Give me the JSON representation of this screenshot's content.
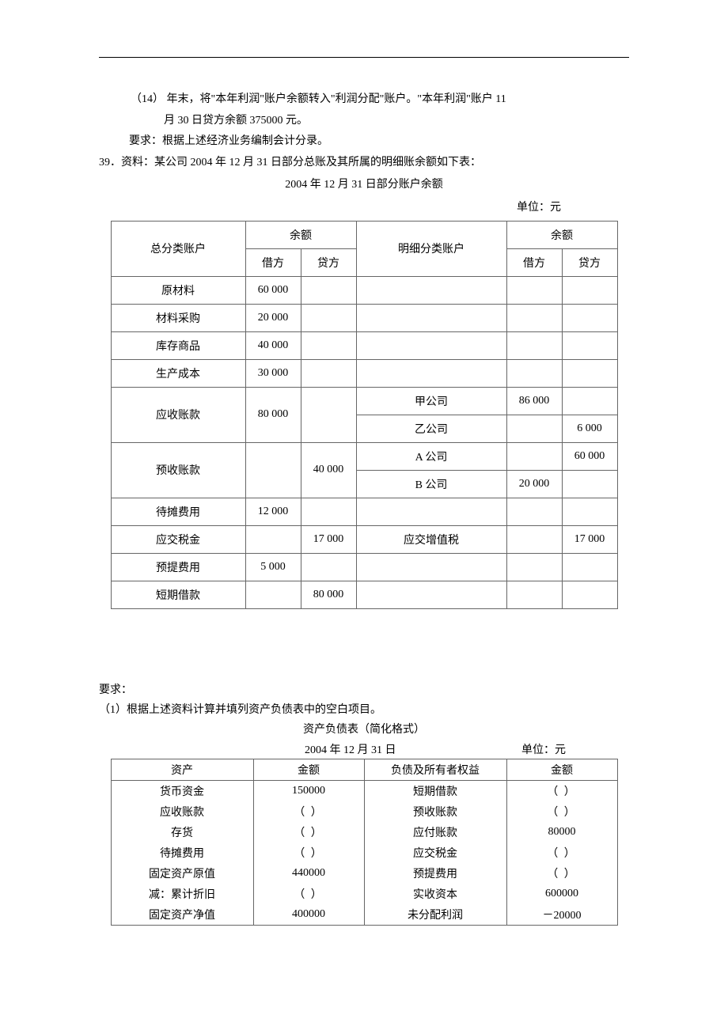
{
  "top": {
    "item14_line1": "（14）  年末，将\"本年利润\"账户余额转入\"利润分配\"账户。\"本年利润\"账户 11",
    "item14_line2": "月 30 日贷方余额 375000 元。",
    "req": "要求：根据上述经济业务编制会计分录。",
    "q39": "39．资料：某公司 2004 年 12 月 31 日部分总账及其所属的明细账余额如下表：",
    "table1_title": "2004 年 12 月 31 日部分账户余额",
    "unit": "单位：元"
  },
  "table1": {
    "headers": {
      "general": "总分类账户",
      "balance": "余额",
      "debit": "借方",
      "credit": "贷方",
      "detail": "明细分类账户"
    },
    "rows": [
      {
        "gen": "原材料",
        "d": "60 000",
        "c": "",
        "det": "",
        "dd": "",
        "dc": ""
      },
      {
        "gen": "材料采购",
        "d": "20 000",
        "c": "",
        "det": "",
        "dd": "",
        "dc": ""
      },
      {
        "gen": "库存商品",
        "d": "40 000",
        "c": "",
        "det": "",
        "dd": "",
        "dc": ""
      },
      {
        "gen": "生产成本",
        "d": "30 000",
        "c": "",
        "det": "",
        "dd": "",
        "dc": ""
      },
      {
        "gen": "应收账款",
        "d": "80 000",
        "c": "",
        "span": 2,
        "details": [
          {
            "det": "甲公司",
            "dd": "86 000",
            "dc": ""
          },
          {
            "det": "乙公司",
            "dd": "",
            "dc": "6 000"
          }
        ]
      },
      {
        "gen": "预收账款",
        "d": "",
        "c": "40 000",
        "span": 2,
        "details": [
          {
            "det": "A 公司",
            "dd": "",
            "dc": "60 000"
          },
          {
            "det": "B 公司",
            "dd": "20 000",
            "dc": ""
          }
        ]
      },
      {
        "gen": "待摊费用",
        "d": "12 000",
        "c": "",
        "det": "",
        "dd": "",
        "dc": ""
      },
      {
        "gen": "应交税金",
        "d": "",
        "c": "17 000",
        "det": "应交增值税",
        "dd": "",
        "dc": "17 000"
      },
      {
        "gen": "预提费用",
        "d": "5 000",
        "c": "",
        "det": "",
        "dd": "",
        "dc": ""
      },
      {
        "gen": "短期借款",
        "d": "",
        "c": "80 000",
        "det": "",
        "dd": "",
        "dc": ""
      }
    ]
  },
  "mid": {
    "req_label": "要求：",
    "req_1": "（1）根据上述资料计算并填列资产负债表中的空白项目。",
    "table2_title": "资产负债表（简化格式）",
    "date": "2004 年 12 月 31 日",
    "unit": "单位：元"
  },
  "table2": {
    "headers": {
      "asset": "资产",
      "amt1": "金额",
      "liab": "负债及所有者权益",
      "amt2": "金额"
    },
    "blank": "（          ）",
    "rows": [
      {
        "a": "货币资金",
        "v1": "150000",
        "l": "短期借款",
        "v2": "BLANK"
      },
      {
        "a": "应收账款",
        "v1": "BLANK",
        "l": "预收账款",
        "v2": "BLANK"
      },
      {
        "a": "存货",
        "v1": "BLANK",
        "l": "应付账款",
        "v2": "80000"
      },
      {
        "a": "待摊费用",
        "v1": "BLANK",
        "l": "应交税金",
        "v2": "BLANK"
      },
      {
        "a": "固定资产原值",
        "v1": "440000",
        "l": "预提费用",
        "v2": "BLANK"
      },
      {
        "a": "减：累计折旧",
        "v1": "BLANK",
        "l": "实收资本",
        "v2": "600000"
      },
      {
        "a": "固定资产净值",
        "v1": "400000",
        "l": "未分配利润",
        "v2": "－20000"
      }
    ]
  }
}
